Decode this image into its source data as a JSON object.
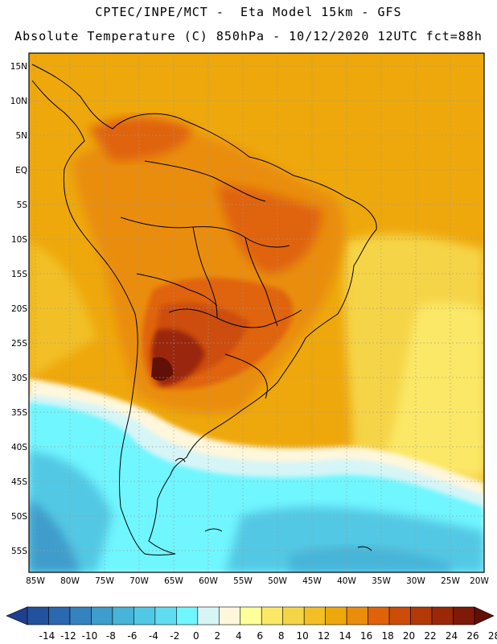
{
  "title_line1": "CPTEC/INPE/MCT -  Eta Model 15km - GFS",
  "title_line2": "Absolute Temperature (C) 850hPa - 10/12/2020 12UTC fct=88h",
  "lat_labels": [
    "15N",
    "10N",
    "5N",
    "EQ",
    "5S",
    "10S",
    "15S",
    "20S",
    "25S",
    "30S",
    "35S",
    "40S",
    "45S",
    "50S",
    "55S"
  ],
  "lon_labels": [
    "85W",
    "80W",
    "75W",
    "70W",
    "65W",
    "60W",
    "55W",
    "50W",
    "45W",
    "40W",
    "35W",
    "30W",
    "25W",
    "20W"
  ],
  "colorbar": {
    "colors": [
      "#1f3f8f",
      "#22529e",
      "#2a68b0",
      "#3582c0",
      "#3f9ccc",
      "#47b4d8",
      "#52c8e4",
      "#5fdcef",
      "#6ff6ff",
      "#d6f5f7",
      "#fff7dc",
      "#ffff99",
      "#fbe866",
      "#f6d447",
      "#f2bf26",
      "#eea80c",
      "#ea8d0c",
      "#e0630a",
      "#cc4d09",
      "#b33a08",
      "#9a2807",
      "#7f1a08",
      "#601006"
    ],
    "labels": [
      "-14",
      "-12",
      "-10",
      "-8",
      "-6",
      "-4",
      "-2",
      "0",
      "2",
      "4",
      "6",
      "8",
      "10",
      "12",
      "14",
      "16",
      "18",
      "20",
      "22",
      "24",
      "26",
      "28"
    ]
  },
  "legend_region_colors": {
    "warm_max": "#5f1608",
    "hot": "#9a3508",
    "orange_dark": "#c9520a",
    "orange": "#e78e10",
    "orange_light": "#f0b11f",
    "yellow": "#f7d552",
    "cream": "#fff8dd",
    "pale_blue": "#dff7fb",
    "cyan": "#62e6f6",
    "blue_mid": "#48bde0",
    "blue_deep": "#3f9ccc"
  }
}
